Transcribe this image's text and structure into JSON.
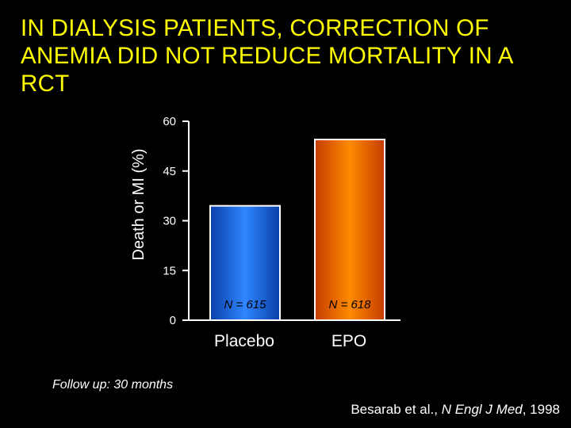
{
  "title": "IN DIALYSIS PATIENTS, CORRECTION OF ANEMIA DID NOT REDUCE MORTALITY IN A RCT",
  "chart_data": {
    "type": "bar",
    "title": "IN DIALYSIS PATIENTS, CORRECTION OF ANEMIA DID NOT REDUCE MORTALITY IN A RCT",
    "ylabel": "Death or MI (%)",
    "xlabel": "",
    "ylim": [
      0,
      60
    ],
    "yticks": [
      0,
      15,
      30,
      45,
      60
    ],
    "categories": [
      "Placebo",
      "EPO"
    ],
    "values": [
      34.5,
      54.5
    ],
    "sample_sizes": [
      "N = 615",
      "N = 618"
    ],
    "grid": false,
    "legend": "none"
  },
  "colors": {
    "background": "#000000",
    "title": "#FFFF00",
    "text": "#FFFFFF",
    "placebo_bar": "#1E6FFF",
    "epo_bar": "#FF7A00"
  },
  "footnote": "Follow up: 30 months",
  "citation": {
    "authors": "Besarab et al.,",
    "journal": "N Engl J Med",
    "year": ", 1998"
  }
}
